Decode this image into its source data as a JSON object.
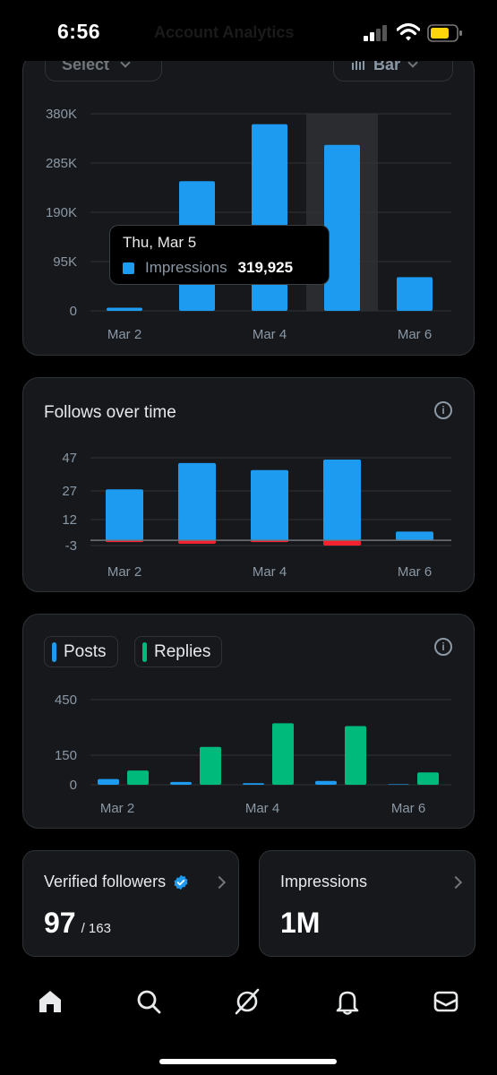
{
  "status": {
    "time": "6:56",
    "behind_text": "Account Analytics"
  },
  "impressions_card": {
    "selector_label": "Select",
    "chart_type_label": "Bar",
    "tooltip": {
      "date": "Thu, Mar 5",
      "series": "Impressions",
      "value": "319,925"
    },
    "chart_data": {
      "type": "bar",
      "categories": [
        "Mar 2",
        "Mar 3",
        "Mar 4",
        "Mar 5",
        "Mar 6"
      ],
      "x_tick_labels": [
        "Mar 2",
        "Mar 4",
        "Mar 6"
      ],
      "series": [
        {
          "name": "Impressions",
          "values": [
            6000,
            250000,
            360000,
            319925,
            65000
          ]
        }
      ],
      "y_ticks": [
        "380K",
        "285K",
        "190K",
        "95K",
        "0"
      ],
      "ylim": [
        0,
        380000
      ],
      "highlight_index": 3,
      "color": "#1d9bf0"
    }
  },
  "follows_card": {
    "title": "Follows over time",
    "chart_data": {
      "type": "bar",
      "categories": [
        "Mar 2",
        "Mar 3",
        "Mar 4",
        "Mar 5",
        "Mar 6"
      ],
      "x_tick_labels": [
        "Mar 2",
        "Mar 4",
        "Mar 6"
      ],
      "series": [
        {
          "values": [
            29,
            44,
            40,
            46,
            5
          ],
          "color": "#1d9bf0"
        },
        {
          "values": [
            -1,
            -2,
            -1,
            -3,
            0
          ],
          "color": "#f4212e"
        }
      ],
      "y_ticks": [
        "47",
        "27",
        "12",
        "-3"
      ],
      "ylim": [
        -3,
        47
      ]
    }
  },
  "posts_card": {
    "legend": [
      {
        "label": "Posts",
        "color": "#1d9bf0"
      },
      {
        "label": "Replies",
        "color": "#00ba7c"
      }
    ],
    "chart_data": {
      "type": "bar",
      "categories": [
        "Mar 2",
        "Mar 3",
        "Mar 4",
        "Mar 5",
        "Mar 6"
      ],
      "x_tick_labels": [
        "Mar 2",
        "Mar 4",
        "Mar 6"
      ],
      "series": [
        {
          "name": "Posts",
          "values": [
            30,
            15,
            8,
            20,
            3
          ],
          "color": "#1d9bf0"
        },
        {
          "name": "Replies",
          "values": [
            75,
            200,
            325,
            310,
            65
          ],
          "color": "#00ba7c"
        }
      ],
      "y_ticks": [
        "450",
        "150",
        "0"
      ],
      "ylim": [
        0,
        450
      ]
    }
  },
  "stats": {
    "verified": {
      "label": "Verified followers",
      "value": "97",
      "sub": "/ 163"
    },
    "impressions": {
      "label": "Impressions",
      "value": "1M"
    }
  },
  "nav": [
    "home-icon",
    "search-icon",
    "grok-icon",
    "bell-icon",
    "mail-icon"
  ]
}
